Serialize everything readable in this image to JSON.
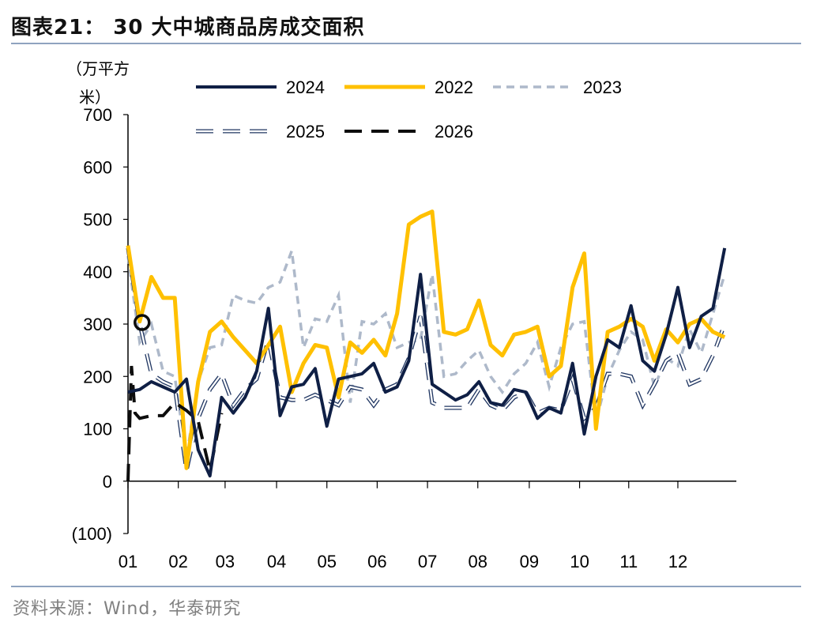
{
  "header": {
    "title": "图表21：  30 大中城商品房成交面积"
  },
  "footer": {
    "source": "资料来源：Wind，华泰研究"
  },
  "chart_data": {
    "type": "line",
    "title": "30 大中城商品房成交面积",
    "ylabel_line1": "（万平方",
    "ylabel_line2": "米）",
    "ylim": [
      -100,
      700
    ],
    "yticks": [
      700,
      600,
      500,
      400,
      300,
      200,
      100,
      0,
      -100
    ],
    "ytick_labels": [
      "700",
      "600",
      "500",
      "400",
      "300",
      "200",
      "100",
      "0",
      "(100)"
    ],
    "x_unit": "week",
    "x_range": [
      1,
      53
    ],
    "month_labels": [
      "01",
      "02",
      "03",
      "04",
      "05",
      "06",
      "07",
      "08",
      "09",
      "10",
      "11",
      "12"
    ],
    "month_positions": [
      1,
      5.3,
      9.3,
      13.7,
      18,
      22.3,
      26.6,
      30.9,
      35.3,
      39.6,
      43.8,
      48
    ],
    "series": [
      {
        "name": "2024",
        "color": "#0f1f45",
        "style": "solid",
        "x": [
          1,
          2,
          3,
          4,
          5,
          6,
          7,
          8,
          9,
          10,
          11,
          12,
          13,
          14,
          15,
          16,
          17,
          18,
          19,
          20,
          21,
          22,
          23,
          24,
          25,
          26,
          27,
          28,
          29,
          30,
          31,
          32,
          33,
          34,
          35,
          36,
          37,
          38,
          39,
          40,
          41,
          42,
          43,
          44,
          45,
          46,
          47,
          48,
          49,
          50,
          51,
          52
        ],
        "values": [
          170,
          175,
          190,
          180,
          170,
          195,
          60,
          10,
          160,
          130,
          160,
          210,
          330,
          125,
          180,
          185,
          215,
          105,
          195,
          200,
          205,
          225,
          170,
          180,
          230,
          395,
          185,
          170,
          155,
          165,
          190,
          150,
          145,
          175,
          170,
          120,
          140,
          130,
          225,
          90,
          200,
          270,
          255,
          335,
          230,
          210,
          280,
          370,
          255,
          315,
          330,
          445
        ]
      },
      {
        "name": "2022",
        "color": "#ffc000",
        "style": "solid",
        "x": [
          1,
          2,
          3,
          4,
          5,
          6,
          7,
          8,
          9,
          10,
          11,
          12,
          13,
          14,
          15,
          16,
          17,
          18,
          19,
          20,
          21,
          22,
          23,
          24,
          25,
          26,
          27,
          28,
          29,
          30,
          31,
          32,
          33,
          34,
          35,
          36,
          37,
          38,
          39,
          40,
          41,
          42,
          43,
          44,
          45,
          46,
          47,
          48,
          49,
          50,
          51,
          52
        ],
        "values": [
          450,
          305,
          390,
          350,
          350,
          25,
          190,
          285,
          305,
          275,
          250,
          225,
          260,
          295,
          170,
          225,
          260,
          255,
          160,
          265,
          245,
          270,
          240,
          320,
          490,
          505,
          515,
          285,
          280,
          290,
          345,
          260,
          240,
          280,
          285,
          295,
          200,
          220,
          370,
          435,
          100,
          285,
          295,
          310,
          295,
          230,
          290,
          265,
          300,
          310,
          285,
          275
        ]
      },
      {
        "name": "2023",
        "color": "#aeb9ca",
        "style": "dash",
        "x": [
          1,
          2,
          3,
          4,
          5,
          6,
          7,
          8,
          9,
          10,
          11,
          12,
          13,
          14,
          15,
          16,
          17,
          18,
          19,
          20,
          21,
          22,
          23,
          24,
          25,
          26,
          27,
          28,
          29,
          30,
          31,
          32,
          33,
          34,
          35,
          36,
          37,
          38,
          39,
          40,
          41,
          42,
          43,
          44,
          45,
          46,
          47,
          48,
          49,
          50,
          51,
          52
        ],
        "values": [
          430,
          265,
          300,
          210,
          200,
          45,
          190,
          255,
          260,
          355,
          345,
          340,
          370,
          380,
          440,
          255,
          310,
          305,
          355,
          150,
          305,
          300,
          320,
          255,
          265,
          270,
          395,
          200,
          205,
          230,
          250,
          200,
          170,
          205,
          225,
          265,
          180,
          255,
          300,
          305,
          115,
          200,
          250,
          285,
          270,
          180,
          235,
          220,
          290,
          245,
          320,
          395
        ]
      },
      {
        "name": "2025",
        "color": "#1f3561",
        "style": "dash-double",
        "x": [
          1,
          2,
          3,
          4,
          5,
          6,
          7,
          8,
          9,
          10,
          11,
          12,
          13,
          14,
          15,
          16,
          17,
          18,
          19,
          20,
          21,
          22,
          23,
          24,
          25,
          26,
          27,
          28,
          29,
          30,
          31,
          32,
          33,
          34,
          35,
          36,
          37,
          38,
          39,
          40,
          41,
          42,
          43,
          44,
          45,
          46,
          47,
          48,
          49,
          50,
          51,
          52
        ],
        "values": [
          445,
          300,
          205,
          190,
          180,
          20,
          120,
          175,
          205,
          145,
          175,
          195,
          270,
          160,
          155,
          155,
          165,
          155,
          145,
          180,
          175,
          145,
          175,
          185,
          235,
          315,
          150,
          140,
          140,
          140,
          175,
          145,
          135,
          160,
          170,
          130,
          140,
          135,
          195,
          120,
          140,
          205,
          205,
          200,
          145,
          185,
          230,
          245,
          185,
          195,
          240,
          300
        ]
      },
      {
        "name": "2026",
        "color": "#0d0d0d",
        "style": "dash-long",
        "x": [
          1,
          1.3,
          1.6,
          2,
          3,
          4,
          5,
          6,
          7,
          8,
          9
        ],
        "values": [
          0,
          220,
          130,
          120,
          125,
          125,
          150,
          135,
          115,
          20,
          130
        ]
      }
    ],
    "highlight_marker": {
      "x": 2.2,
      "y": 303,
      "shape": "circle"
    },
    "legend": [
      {
        "label": "2024"
      },
      {
        "label": "2022"
      },
      {
        "label": "2023"
      },
      {
        "label": "2025"
      },
      {
        "label": "2026"
      }
    ],
    "legend_position": "top-center",
    "grid": false
  }
}
